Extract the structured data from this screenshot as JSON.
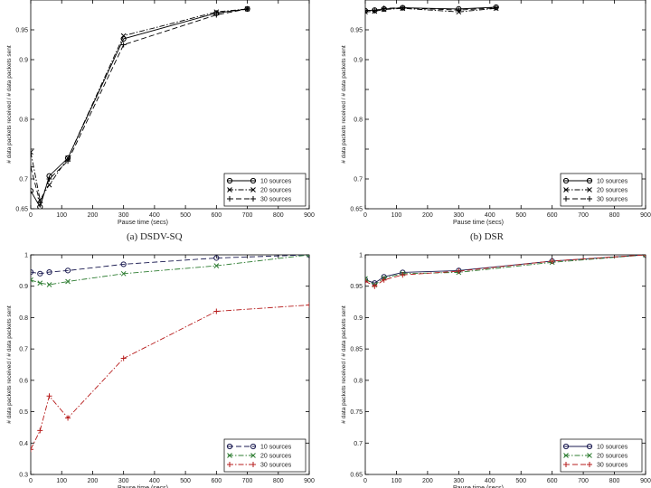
{
  "captions": [
    "(a) DSDV-SQ",
    "(b) DSR"
  ],
  "chart_data": [
    {
      "type": "line",
      "panel": "a",
      "xlabel": "Pause time (secs)",
      "ylabel": "# data packets received / # data packets sent",
      "xlim": [
        0,
        900
      ],
      "ylim": [
        0.65,
        1.0
      ],
      "xticks": [
        0,
        100,
        200,
        300,
        400,
        500,
        600,
        700,
        800,
        900
      ],
      "yticks": [
        0.65,
        0.7,
        0.75,
        0.8,
        0.85,
        0.9,
        0.95
      ],
      "ytick_labels": [
        "0.65",
        "0.7",
        "",
        "0.8",
        "",
        "0.9",
        "0.95"
      ],
      "legend": "bottom-right",
      "series": [
        {
          "name": "10 sources",
          "marker": "circle",
          "dash": "solid",
          "color": "#000000",
          "x": [
            0,
            30,
            60,
            120,
            300,
            600,
            700
          ],
          "y": [
            0.68,
            0.653,
            0.705,
            0.735,
            0.935,
            0.978,
            0.985
          ]
        },
        {
          "name": "20 sources",
          "marker": "x",
          "dash": "dashdot",
          "color": "#000000",
          "x": [
            0,
            30,
            60,
            120,
            300,
            600,
            700
          ],
          "y": [
            0.745,
            0.665,
            0.69,
            0.735,
            0.94,
            0.98,
            0.985
          ]
        },
        {
          "name": "30 sources",
          "marker": "plus",
          "dash": "dashed",
          "color": "#000000",
          "x": [
            0,
            30,
            60,
            120,
            300,
            600,
            700
          ],
          "y": [
            0.72,
            0.66,
            0.7,
            0.73,
            0.925,
            0.975,
            0.985
          ]
        }
      ]
    },
    {
      "type": "line",
      "panel": "b",
      "xlabel": "Pause time (secs)",
      "ylabel": "# data packets received / # data packets sent",
      "xlim": [
        0,
        900
      ],
      "ylim": [
        0.65,
        1.0
      ],
      "xticks": [
        0,
        100,
        200,
        300,
        400,
        500,
        600,
        700,
        800,
        900
      ],
      "yticks": [
        0.65,
        0.7,
        0.75,
        0.8,
        0.85,
        0.9,
        0.95
      ],
      "ytick_labels": [
        "0.65",
        "0.7",
        "",
        "0.8",
        "",
        "0.9",
        "0.95"
      ],
      "legend": "bottom-right",
      "series": [
        {
          "name": "10 sources",
          "marker": "circle",
          "dash": "solid",
          "color": "#000000",
          "x": [
            0,
            30,
            60,
            120,
            300,
            420
          ],
          "y": [
            0.982,
            0.983,
            0.985,
            0.987,
            0.985,
            0.988
          ]
        },
        {
          "name": "20 sources",
          "marker": "x",
          "dash": "dashdot",
          "color": "#000000",
          "x": [
            0,
            30,
            60,
            120,
            300,
            420
          ],
          "y": [
            0.98,
            0.981,
            0.984,
            0.986,
            0.98,
            0.986
          ]
        },
        {
          "name": "30 sources",
          "marker": "plus",
          "dash": "dashed",
          "color": "#000000",
          "x": [
            0,
            30,
            60,
            120,
            300,
            420
          ],
          "y": [
            0.983,
            0.982,
            0.986,
            0.987,
            0.983,
            0.987
          ]
        }
      ]
    },
    {
      "type": "line",
      "panel": "c",
      "xlabel": "Pause time (secs)",
      "ylabel": "# data packets received / # data packets sent",
      "xlim": [
        0,
        900
      ],
      "ylim": [
        0.3,
        1.0
      ],
      "xticks": [
        0,
        100,
        200,
        300,
        400,
        500,
        600,
        700,
        800,
        900
      ],
      "yticks": [
        0.3,
        0.4,
        0.5,
        0.6,
        0.7,
        0.8,
        0.9,
        1.0
      ],
      "ytick_labels": [
        "0.3",
        "0.4",
        "0.5",
        "0.6",
        "0.7",
        "0.8",
        "0.9",
        "1"
      ],
      "legend": "bottom-right",
      "series": [
        {
          "name": "10 sources",
          "marker": "circle",
          "dash": "dashed",
          "color": "#1a1a50",
          "x": [
            0,
            30,
            60,
            120,
            300,
            600,
            900
          ],
          "y": [
            0.945,
            0.94,
            0.945,
            0.95,
            0.97,
            0.99,
            1.0
          ]
        },
        {
          "name": "20 sources",
          "marker": "x",
          "dash": "dashdot",
          "color": "#2e7d32",
          "x": [
            0,
            30,
            60,
            120,
            300,
            600,
            900
          ],
          "y": [
            0.92,
            0.91,
            0.905,
            0.915,
            0.94,
            0.965,
            1.0
          ]
        },
        {
          "name": "30 sources",
          "marker": "plus",
          "dash": "dashdot",
          "color": "#b71c1c",
          "x": [
            0,
            30,
            60,
            120,
            300,
            600,
            900
          ],
          "y": [
            0.38,
            0.44,
            0.55,
            0.48,
            0.67,
            0.82,
            0.84
          ]
        }
      ]
    },
    {
      "type": "line",
      "panel": "d",
      "xlabel": "Pause time (secs)",
      "ylabel": "# data packets received / # data packets sent",
      "xlim": [
        0,
        900
      ],
      "ylim": [
        0.65,
        1.0
      ],
      "xticks": [
        0,
        100,
        200,
        300,
        400,
        500,
        600,
        700,
        800,
        900
      ],
      "yticks": [
        0.65,
        0.7,
        0.75,
        0.8,
        0.85,
        0.9,
        0.95,
        1.0
      ],
      "ytick_labels": [
        "0.65",
        "0.7",
        "0.75",
        "0.8",
        "0.85",
        "0.9",
        "0.95",
        "1"
      ],
      "legend": "bottom-right",
      "series": [
        {
          "name": "10 sources",
          "marker": "circle",
          "dash": "solid",
          "color": "#1a1a50",
          "x": [
            0,
            30,
            60,
            120,
            300,
            600,
            900
          ],
          "y": [
            0.96,
            0.955,
            0.965,
            0.972,
            0.975,
            0.99,
            1.0
          ]
        },
        {
          "name": "20 sources",
          "marker": "x",
          "dash": "dashdot",
          "color": "#2e7d32",
          "x": [
            0,
            30,
            60,
            120,
            300,
            600,
            900
          ],
          "y": [
            0.962,
            0.952,
            0.963,
            0.97,
            0.972,
            0.988,
            1.0
          ]
        },
        {
          "name": "30 sources",
          "marker": "plus",
          "dash": "dashed",
          "color": "#b71c1c",
          "x": [
            0,
            30,
            60,
            120,
            300,
            600,
            900
          ],
          "y": [
            0.958,
            0.95,
            0.96,
            0.968,
            0.974,
            0.99,
            1.0
          ]
        }
      ]
    }
  ]
}
